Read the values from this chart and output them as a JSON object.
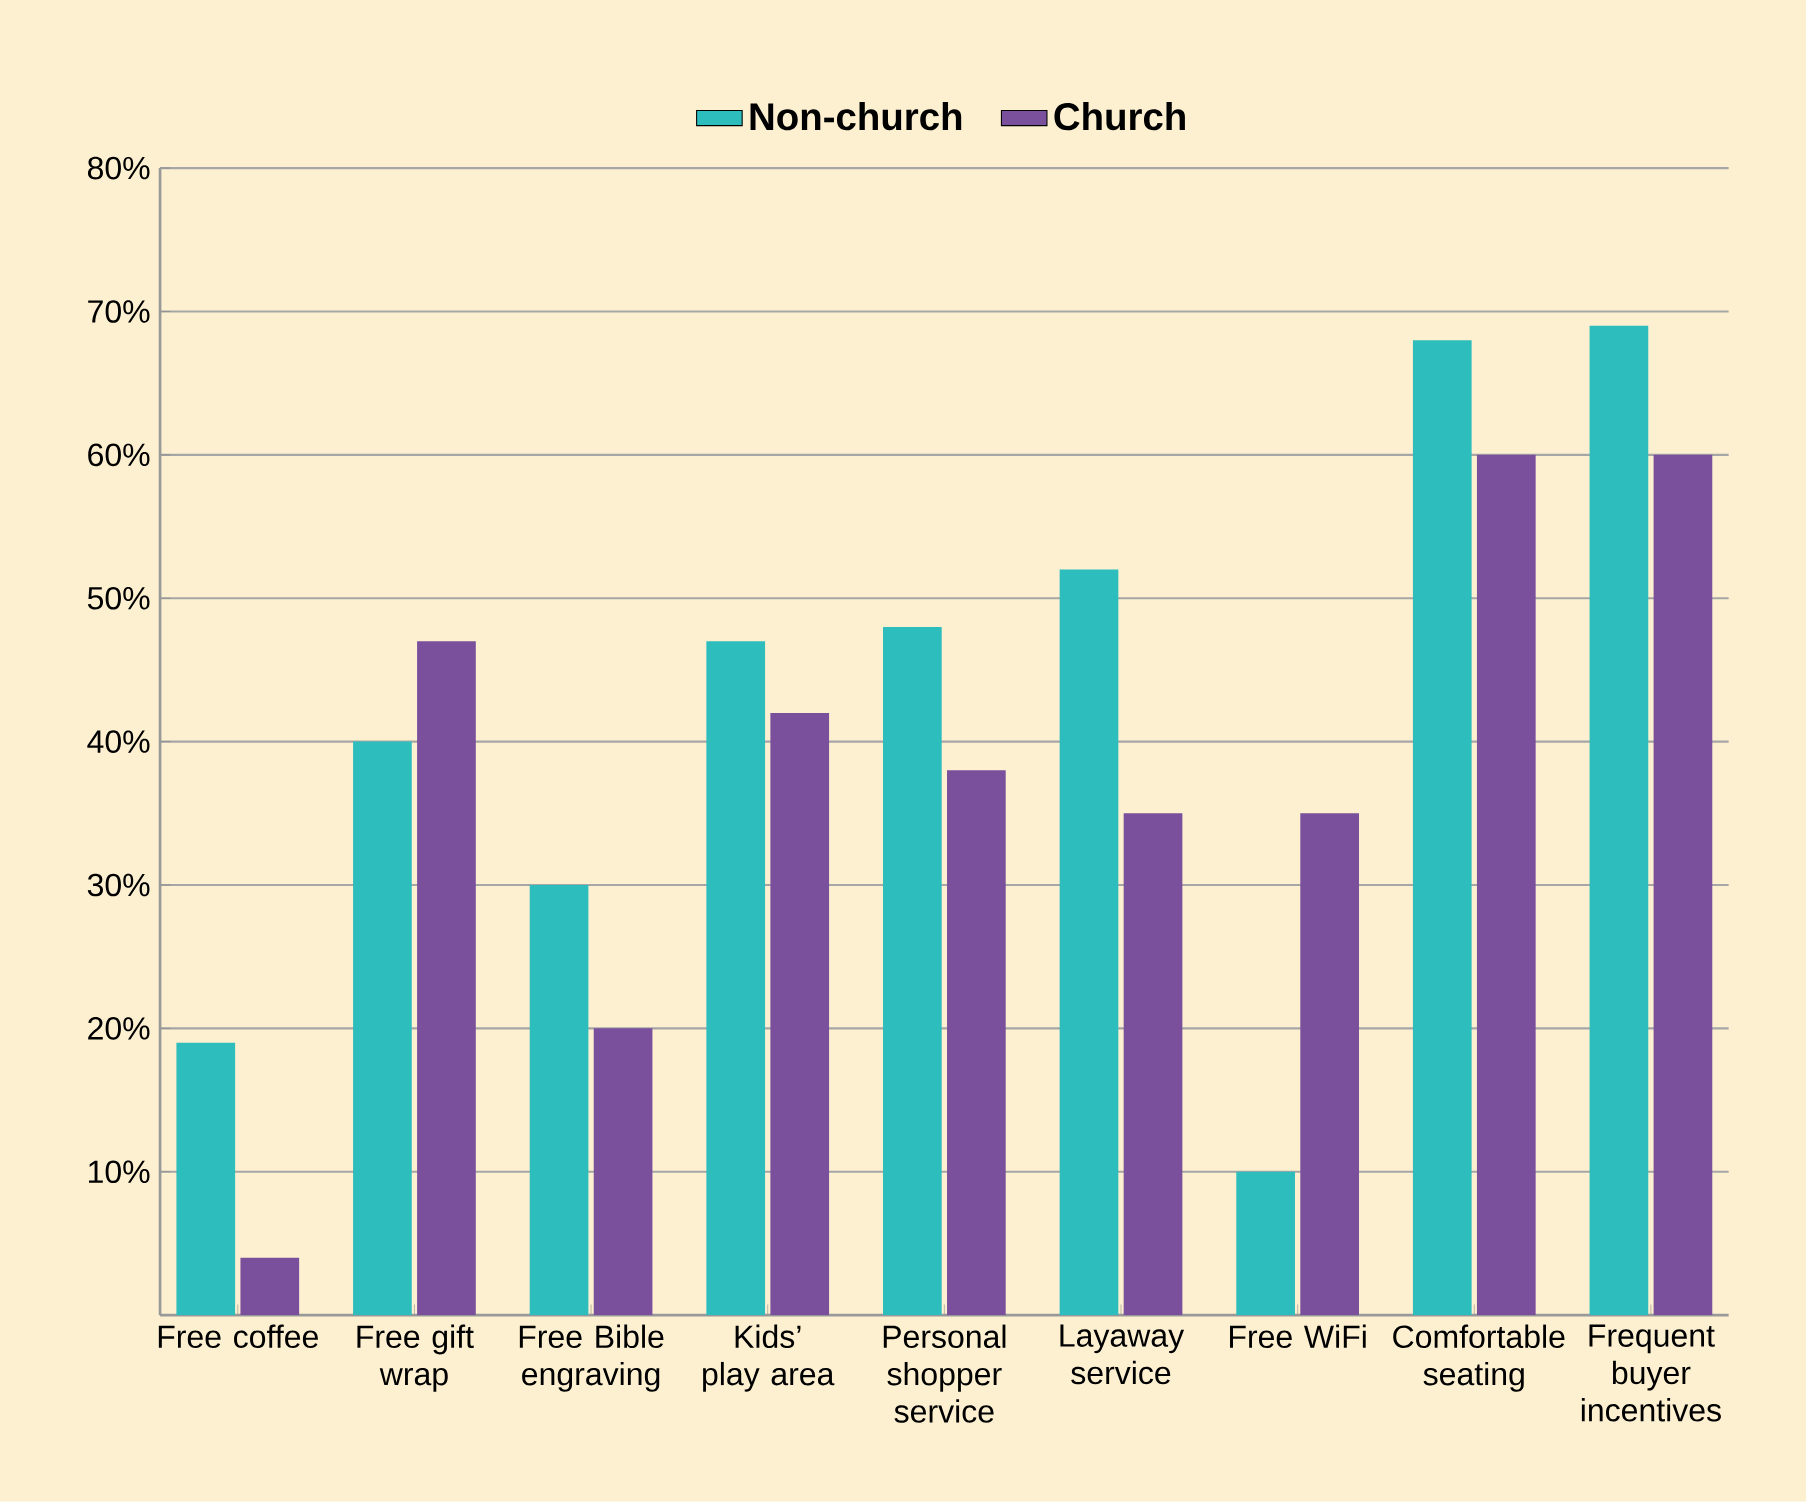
{
  "chart_data": {
    "type": "bar",
    "categories": [
      "Free coffee",
      "Free gift wrap",
      "Free Bible engraving",
      "Kids’ play area",
      "Personal shopper service",
      "Layaway service",
      "Free WiFi",
      "Comfortable seating",
      "Frequent buyer incentives"
    ],
    "series": [
      {
        "name": "Non-church",
        "color": "#2ebdbd",
        "values": [
          19,
          40,
          30,
          47,
          48,
          52,
          10,
          68,
          69
        ]
      },
      {
        "name": "Church",
        "color": "#7a4f9c",
        "values": [
          4,
          47,
          20,
          42,
          38,
          35,
          35,
          60,
          60
        ]
      }
    ],
    "ylim": [
      0,
      80
    ],
    "yticks": [
      {
        "value": 10,
        "label": "10%"
      },
      {
        "value": 20,
        "label": "20%"
      },
      {
        "value": 30,
        "label": "30%"
      },
      {
        "value": 40,
        "label": "40%"
      },
      {
        "value": 50,
        "label": "50%"
      },
      {
        "value": 60,
        "label": "60%"
      },
      {
        "value": 70,
        "label": "70%"
      },
      {
        "value": 80,
        "label": "80%"
      }
    ],
    "grid": "y",
    "legend": "top"
  }
}
